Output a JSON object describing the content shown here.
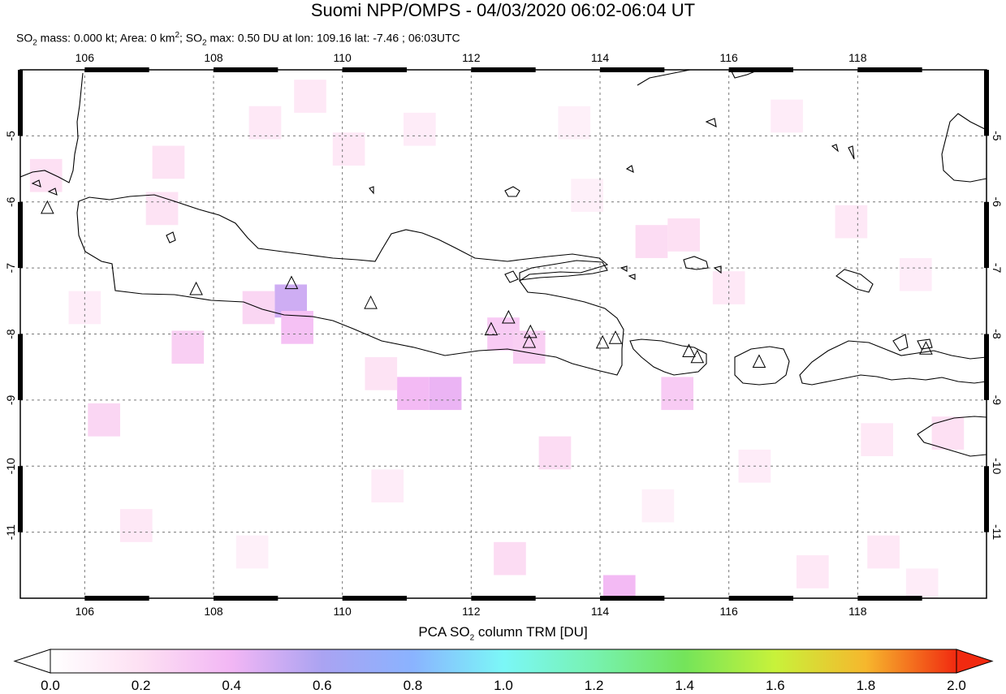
{
  "title": "Suomi NPP/OMPS - 04/03/2020 06:02-06:04 UT",
  "subtitle": {
    "mass_label": "SO",
    "mass_sub": "2",
    "mass_rest": " mass: 0.000 kt; Area: 0 km",
    "area_sup": "2",
    "max_sep": "; SO",
    "max_sub": "2",
    "max_rest": " max: 0.50 DU at lon: 109.16 lat: -7.46 ; 06:03UTC"
  },
  "map": {
    "lon_range": [
      105.0,
      120.0
    ],
    "lat_range": [
      -12.0,
      -4.0
    ],
    "lon_ticks": [
      "106",
      "108",
      "110",
      "112",
      "114",
      "116",
      "118"
    ],
    "lat_ticks": [
      "-5",
      "-6",
      "-7",
      "-8",
      "-9",
      "-10",
      "-11"
    ],
    "grid": "dashed",
    "colors": {
      "coast": "#000000",
      "grid": "#777777",
      "volcano": "#000000"
    },
    "volcanoes": [
      {
        "lon": 105.42,
        "lat": -6.1
      },
      {
        "lon": 107.73,
        "lat": -7.33
      },
      {
        "lon": 109.21,
        "lat": -7.24
      },
      {
        "lon": 110.44,
        "lat": -7.54
      },
      {
        "lon": 112.31,
        "lat": -7.94
      },
      {
        "lon": 112.58,
        "lat": -7.76
      },
      {
        "lon": 112.92,
        "lat": -7.98
      },
      {
        "lon": 112.9,
        "lat": -8.13
      },
      {
        "lon": 114.04,
        "lat": -8.14
      },
      {
        "lon": 114.24,
        "lat": -8.07
      },
      {
        "lon": 115.38,
        "lat": -8.27
      },
      {
        "lon": 115.51,
        "lat": -8.36
      },
      {
        "lon": 116.47,
        "lat": -8.43
      },
      {
        "lon": 119.06,
        "lat": -8.23
      }
    ],
    "so2_pixels": [
      {
        "lon": 109.2,
        "lat": -7.5,
        "du": 0.5
      },
      {
        "lon": 109.3,
        "lat": -7.9,
        "du": 0.35
      },
      {
        "lon": 111.6,
        "lat": -8.9,
        "du": 0.42
      },
      {
        "lon": 111.1,
        "lat": -8.9,
        "du": 0.38
      },
      {
        "lon": 112.5,
        "lat": -8.0,
        "du": 0.3
      },
      {
        "lon": 112.9,
        "lat": -8.2,
        "du": 0.28
      },
      {
        "lon": 108.7,
        "lat": -7.6,
        "du": 0.25
      },
      {
        "lon": 107.6,
        "lat": -8.2,
        "du": 0.28
      },
      {
        "lon": 115.2,
        "lat": -8.9,
        "du": 0.3
      },
      {
        "lon": 114.3,
        "lat": -11.9,
        "du": 0.38
      },
      {
        "lon": 106.3,
        "lat": -9.3,
        "du": 0.25
      },
      {
        "lon": 114.8,
        "lat": -6.6,
        "du": 0.22
      },
      {
        "lon": 115.3,
        "lat": -6.5,
        "du": 0.2
      },
      {
        "lon": 112.6,
        "lat": -11.4,
        "du": 0.22
      },
      {
        "lon": 113.3,
        "lat": -9.8,
        "du": 0.22
      },
      {
        "lon": 107.2,
        "lat": -6.1,
        "du": 0.18
      },
      {
        "lon": 110.6,
        "lat": -8.6,
        "du": 0.18
      },
      {
        "lon": 108.8,
        "lat": -4.8,
        "du": 0.15
      },
      {
        "lon": 109.5,
        "lat": -4.4,
        "du": 0.15
      },
      {
        "lon": 105.4,
        "lat": -5.6,
        "du": 0.2
      },
      {
        "lon": 107.3,
        "lat": -5.4,
        "du": 0.18
      },
      {
        "lon": 110.1,
        "lat": -5.2,
        "du": 0.15
      },
      {
        "lon": 111.2,
        "lat": -4.9,
        "du": 0.12
      },
      {
        "lon": 113.6,
        "lat": -4.8,
        "du": 0.1
      },
      {
        "lon": 116.9,
        "lat": -4.7,
        "du": 0.12
      },
      {
        "lon": 117.9,
        "lat": -6.3,
        "du": 0.15
      },
      {
        "lon": 116.0,
        "lat": -7.3,
        "du": 0.15
      },
      {
        "lon": 118.9,
        "lat": -7.1,
        "du": 0.12
      },
      {
        "lon": 106.8,
        "lat": -10.9,
        "du": 0.15
      },
      {
        "lon": 108.6,
        "lat": -11.3,
        "du": 0.1
      },
      {
        "lon": 110.7,
        "lat": -10.3,
        "du": 0.12
      },
      {
        "lon": 117.3,
        "lat": -11.6,
        "du": 0.15
      },
      {
        "lon": 118.4,
        "lat": -11.3,
        "du": 0.15
      },
      {
        "lon": 119.0,
        "lat": -11.8,
        "du": 0.12
      },
      {
        "lon": 106.0,
        "lat": -7.6,
        "du": 0.12
      },
      {
        "lon": 114.9,
        "lat": -10.6,
        "du": 0.1
      },
      {
        "lon": 116.4,
        "lat": -10.0,
        "du": 0.12
      },
      {
        "lon": 118.3,
        "lat": -9.6,
        "du": 0.15
      },
      {
        "lon": 119.4,
        "lat": -9.5,
        "du": 0.2
      },
      {
        "lon": 113.8,
        "lat": -5.9,
        "du": 0.1
      }
    ]
  },
  "colorbar": {
    "title_main": "PCA SO",
    "title_sub": "2",
    "title_rest": " column TRM [DU]",
    "min": 0.0,
    "max": 2.0,
    "labels": [
      "0.0",
      "0.2",
      "0.4",
      "0.6",
      "0.8",
      "1.0",
      "1.2",
      "1.4",
      "1.6",
      "1.8",
      "2.0"
    ],
    "stops": [
      {
        "v": 0.0,
        "c": "#ffffff"
      },
      {
        "v": 0.2,
        "c": "#fde0f3"
      },
      {
        "v": 0.4,
        "c": "#f2b6f4"
      },
      {
        "v": 0.6,
        "c": "#aaa3f2"
      },
      {
        "v": 0.8,
        "c": "#8ab3ff"
      },
      {
        "v": 1.0,
        "c": "#7bf7f7"
      },
      {
        "v": 1.2,
        "c": "#77f2b0"
      },
      {
        "v": 1.4,
        "c": "#74e45a"
      },
      {
        "v": 1.6,
        "c": "#c8f23a"
      },
      {
        "v": 1.8,
        "c": "#f6b72d"
      },
      {
        "v": 2.0,
        "c": "#f12a10"
      }
    ]
  }
}
